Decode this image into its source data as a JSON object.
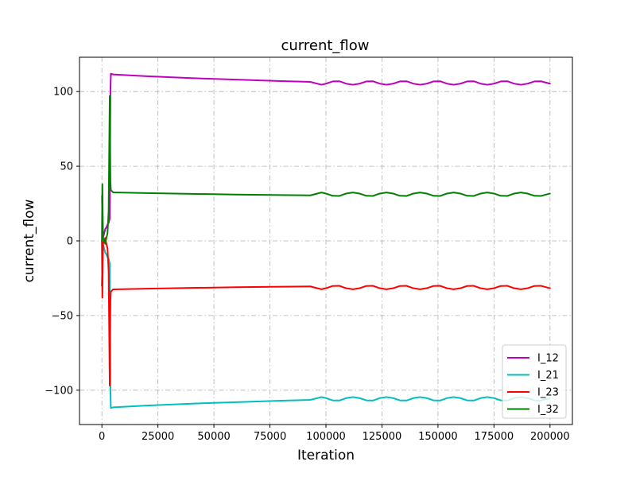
{
  "colors": {
    "grid": "#b0b0b0",
    "axis": "#000000",
    "legend_border": "#cccccc"
  },
  "chart_data": {
    "type": "line",
    "title": "current_flow",
    "xlabel": "Iteration",
    "ylabel": "current_flow",
    "xlim": [
      -10000,
      210000
    ],
    "ylim": [
      -123,
      123
    ],
    "xticks": [
      0,
      25000,
      50000,
      75000,
      100000,
      125000,
      150000,
      175000,
      200000
    ],
    "xtick_labels": [
      "0",
      "25000",
      "50000",
      "75000",
      "100000",
      "125000",
      "150000",
      "175000",
      "200000"
    ],
    "yticks": [
      -100,
      -50,
      0,
      50,
      100
    ],
    "ytick_labels": [
      "−100",
      "−50",
      "0",
      "50",
      "100"
    ],
    "grid": true,
    "legend_position": "lower right",
    "series": [
      {
        "name": "I_12",
        "color": "#bf00bf",
        "x": [
          0,
          500,
          1000,
          1500,
          2000,
          2500,
          3000,
          3500,
          3800,
          4000,
          5000,
          20000,
          40000,
          60000,
          80000,
          93000,
          98000,
          100000,
          103000,
          106000,
          109000,
          112000,
          115000,
          118000,
          121000,
          124000,
          127000,
          130000,
          133000,
          136000,
          139000,
          142000,
          145000,
          148000,
          151000,
          154000,
          157000,
          160000,
          163000,
          166000,
          169000,
          172000,
          175000,
          178000,
          181000,
          184000,
          187000,
          190000,
          193000,
          196000,
          200000
        ],
        "y": [
          -30,
          2,
          5,
          8,
          9,
          11,
          12,
          15,
          100,
          112,
          111.5,
          110.3,
          109,
          108,
          107,
          106.5,
          104.6,
          105.3,
          106.8,
          106.9,
          105.3,
          104.6,
          105.3,
          106.8,
          106.9,
          105.3,
          104.6,
          105.3,
          106.8,
          106.9,
          105.3,
          104.6,
          105.3,
          106.8,
          106.9,
          105.3,
          104.6,
          105.3,
          106.8,
          106.9,
          105.3,
          104.6,
          105.3,
          106.8,
          106.9,
          105.3,
          104.6,
          105.3,
          106.8,
          106.9,
          105.3
        ]
      },
      {
        "name": "I_21",
        "color": "#00bfbf",
        "x": [
          0,
          500,
          1000,
          1500,
          2000,
          2500,
          3000,
          3500,
          3800,
          4000,
          5000,
          20000,
          40000,
          60000,
          80000,
          93000,
          98000,
          100000,
          103000,
          106000,
          109000,
          112000,
          115000,
          118000,
          121000,
          124000,
          127000,
          130000,
          133000,
          136000,
          139000,
          142000,
          145000,
          148000,
          151000,
          154000,
          157000,
          160000,
          163000,
          166000,
          169000,
          172000,
          175000,
          178000,
          181000,
          184000,
          187000,
          190000,
          193000,
          196000,
          200000
        ],
        "y": [
          30,
          -2,
          -5,
          -8,
          -9,
          -11,
          -12,
          -15,
          -100,
          -112,
          -111.5,
          -110.3,
          -109,
          -108,
          -107,
          -106.5,
          -104.6,
          -105.3,
          -106.8,
          -106.9,
          -105.3,
          -104.6,
          -105.3,
          -106.8,
          -106.9,
          -105.3,
          -104.6,
          -105.3,
          -106.8,
          -106.9,
          -105.3,
          -104.6,
          -105.3,
          -106.8,
          -106.9,
          -105.3,
          -104.6,
          -105.3,
          -106.8,
          -106.9,
          -105.3,
          -104.6,
          -105.3,
          -106.8,
          -106.9,
          -105.3,
          -104.6,
          -105.3,
          -106.8,
          -106.9,
          -105.3
        ]
      },
      {
        "name": "I_23",
        "color": "#ff0000",
        "x": [
          0,
          200,
          500,
          1000,
          1500,
          2000,
          2500,
          3000,
          3500,
          3800,
          4000,
          5000,
          20000,
          40000,
          60000,
          80000,
          93000,
          98000,
          100000,
          103000,
          106000,
          109000,
          112000,
          115000,
          118000,
          121000,
          124000,
          127000,
          130000,
          133000,
          136000,
          139000,
          142000,
          145000,
          148000,
          151000,
          154000,
          157000,
          160000,
          163000,
          166000,
          169000,
          172000,
          175000,
          178000,
          181000,
          184000,
          187000,
          190000,
          193000,
          196000,
          200000
        ],
        "y": [
          0,
          -38,
          -2,
          0,
          2,
          -2,
          -5,
          -20,
          -97,
          -40,
          -34,
          -32.5,
          -32,
          -31.5,
          -31,
          -30.7,
          -30.5,
          -32.4,
          -31.7,
          -30.2,
          -30.1,
          -31.7,
          -32.4,
          -31.7,
          -30.2,
          -30.1,
          -31.7,
          -32.4,
          -31.7,
          -30.2,
          -30.1,
          -31.7,
          -32.4,
          -31.7,
          -30.2,
          -30.1,
          -31.7,
          -32.4,
          -31.7,
          -30.2,
          -30.1,
          -31.7,
          -32.4,
          -31.7,
          -30.2,
          -30.1,
          -31.7,
          -32.4,
          -31.7,
          -30.2,
          -30.1,
          -31.7
        ]
      },
      {
        "name": "I_32",
        "color": "#008000",
        "x": [
          0,
          200,
          500,
          1000,
          1500,
          2000,
          2500,
          3000,
          3500,
          3800,
          4000,
          5000,
          20000,
          40000,
          60000,
          80000,
          93000,
          98000,
          100000,
          103000,
          106000,
          109000,
          112000,
          115000,
          118000,
          121000,
          124000,
          127000,
          130000,
          133000,
          136000,
          139000,
          142000,
          145000,
          148000,
          151000,
          154000,
          157000,
          160000,
          163000,
          166000,
          169000,
          172000,
          175000,
          178000,
          181000,
          184000,
          187000,
          190000,
          193000,
          196000,
          200000
        ],
        "y": [
          0,
          38,
          2,
          0,
          -2,
          2,
          5,
          20,
          97,
          40,
          34,
          32.5,
          32,
          31.5,
          31,
          30.7,
          30.5,
          32.4,
          31.7,
          30.2,
          30.1,
          31.7,
          32.4,
          31.7,
          30.2,
          30.1,
          31.7,
          32.4,
          31.7,
          30.2,
          30.1,
          31.7,
          32.4,
          31.7,
          30.2,
          30.1,
          31.7,
          32.4,
          31.7,
          30.2,
          30.1,
          31.7,
          32.4,
          31.7,
          30.2,
          30.1,
          31.7,
          32.4,
          31.7,
          30.2,
          30.1,
          31.7
        ]
      }
    ]
  }
}
